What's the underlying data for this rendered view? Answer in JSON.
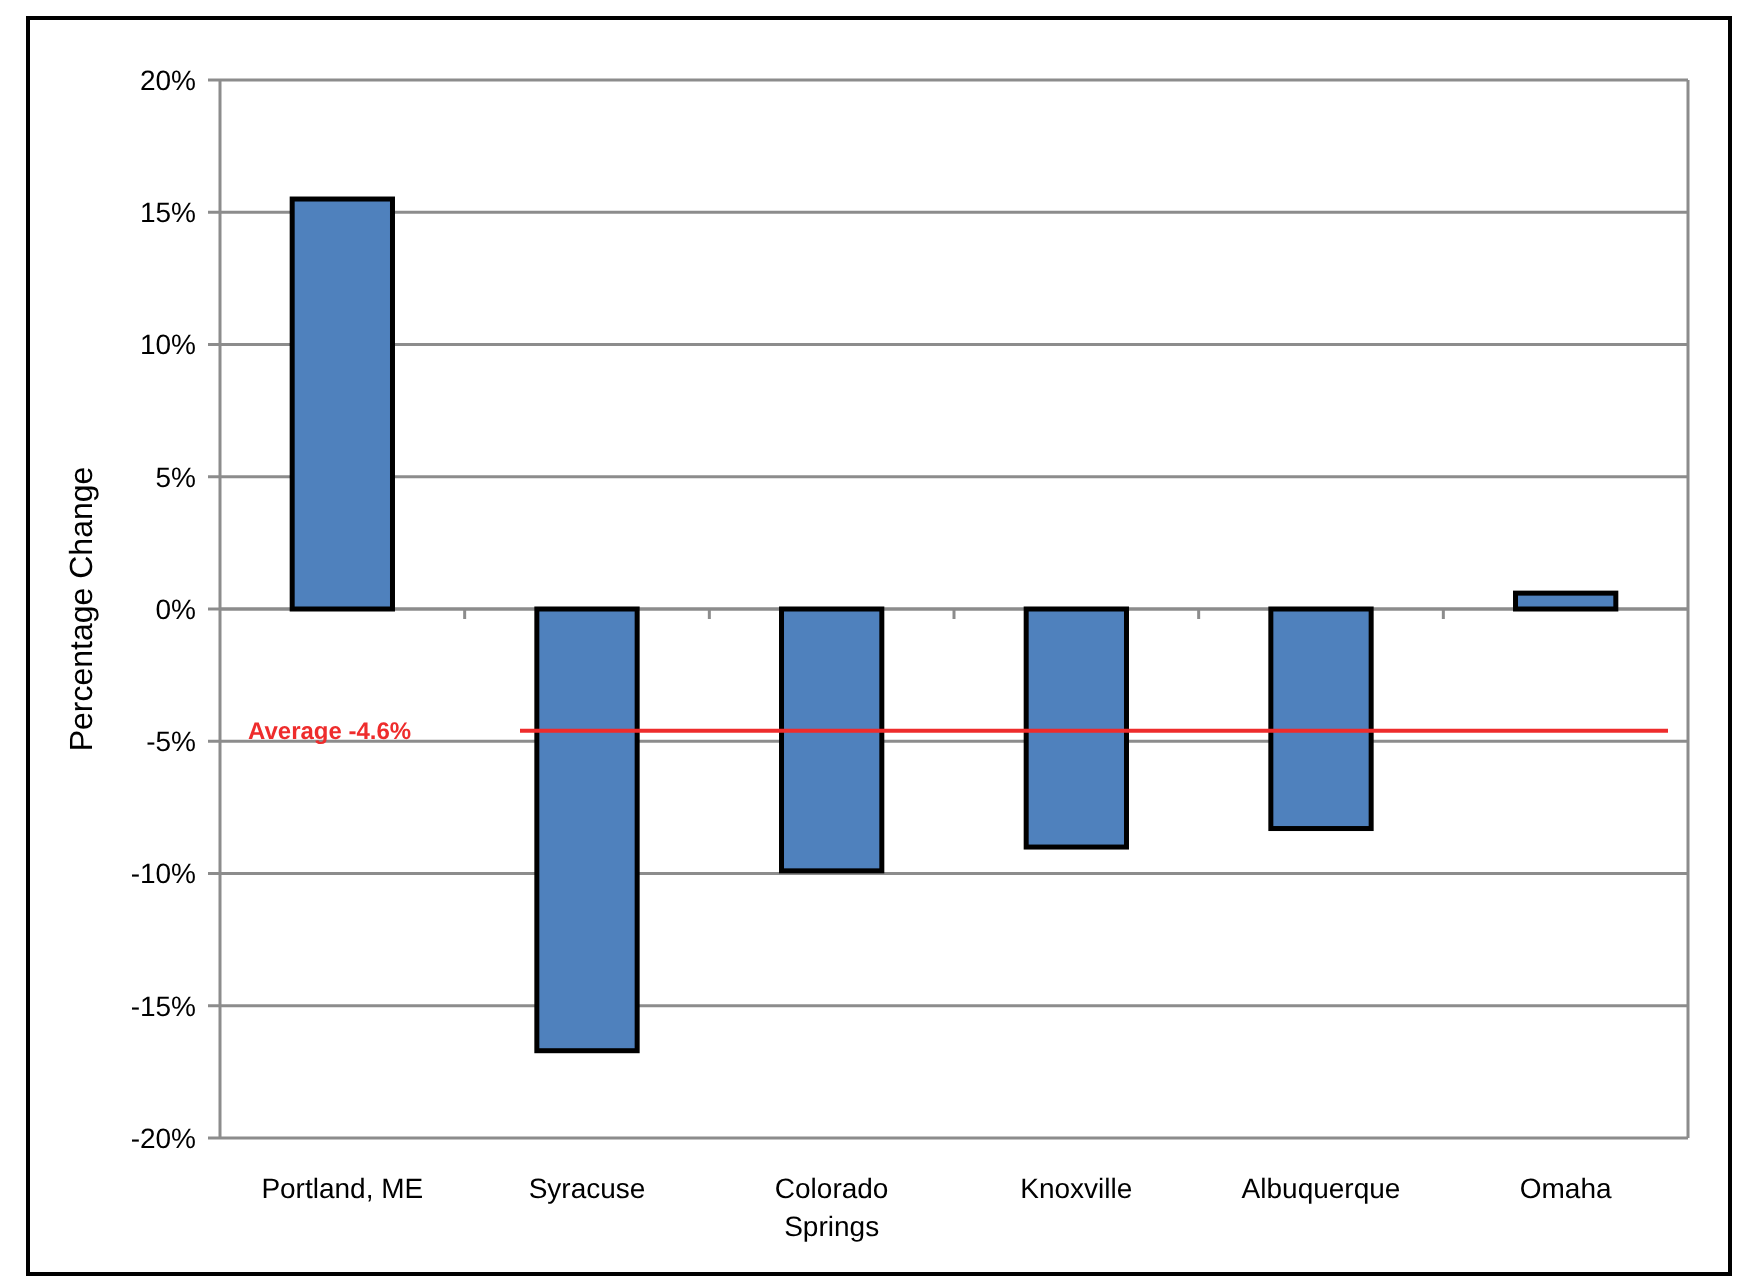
{
  "chart_data": {
    "type": "bar",
    "ylabel": "Percentage Change",
    "categories": [
      "Portland, ME",
      "Syracuse",
      "Colorado Springs",
      "Knoxville",
      "Albuquerque",
      "Omaha"
    ],
    "values": [
      15.5,
      -16.7,
      -9.9,
      -9.0,
      -8.3,
      0.6
    ],
    "color": "#4f81bd",
    "ylim": [
      -20,
      20
    ],
    "yticks": [
      {
        "value": -20,
        "label": "-20%"
      },
      {
        "value": -15,
        "label": "-15%"
      },
      {
        "value": -10,
        "label": "-10%"
      },
      {
        "value": -5,
        "label": "-5%"
      },
      {
        "value": 0,
        "label": "0%"
      },
      {
        "value": 5,
        "label": "5%"
      },
      {
        "value": 10,
        "label": "10%"
      },
      {
        "value": 15,
        "label": "15%"
      },
      {
        "value": 20,
        "label": "20%"
      }
    ],
    "grid": "y",
    "ref_lines": [
      {
        "axis": "y",
        "value": -4.6,
        "label": "Average -4.6%",
        "color": "#ee2c2c"
      }
    ]
  }
}
